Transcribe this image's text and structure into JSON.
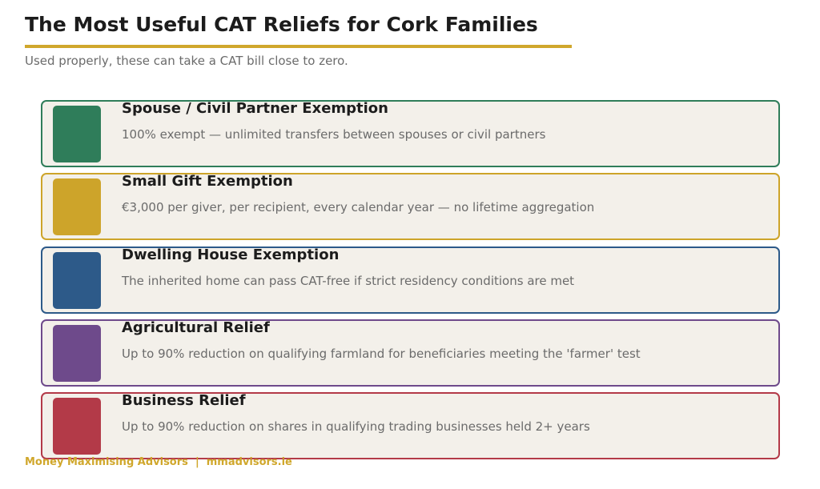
{
  "header": {
    "title": "The Most Useful CAT Reliefs for Cork Families",
    "subtitle": "Used properly, these can take a CAT bill close to zero.",
    "accent_color": "#d0a72c"
  },
  "items": [
    {
      "title": "Spouse / Civil Partner Exemption",
      "description": "100% exempt — unlimited transfers between spouses or civil partners",
      "color": "#2f7d5a"
    },
    {
      "title": "Small Gift Exemption",
      "description": "€3,000 per giver, per recipient, every calendar year — no lifetime aggregation",
      "color": "#cda42a"
    },
    {
      "title": "Dwelling House Exemption",
      "description": "The inherited home can pass CAT-free if strict residency conditions are met",
      "color": "#2d5a89"
    },
    {
      "title": "Agricultural Relief",
      "description": "Up to 90% reduction on qualifying farmland for beneficiaries meeting the 'farmer' test",
      "color": "#6e4a8b"
    },
    {
      "title": "Business Relief",
      "description": "Up to 90% reduction on shares in qualifying trading businesses held 2+ years",
      "color": "#b33a48"
    }
  ],
  "footer": {
    "text": "Money Maximising Advisors  |  mmadvisors.ie"
  }
}
